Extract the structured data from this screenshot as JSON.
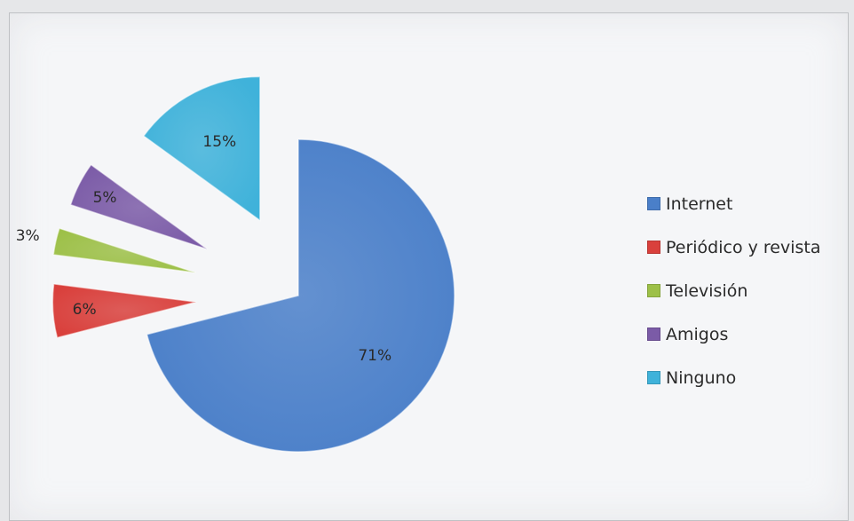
{
  "chart_data": {
    "type": "pie",
    "categories": [
      "Internet",
      "Periódico y revista",
      "Televisión",
      "Amigos",
      "Ninguno"
    ],
    "values": [
      71,
      6,
      3,
      5,
      15
    ],
    "labels": [
      "71%",
      "6%",
      "3%",
      "5%",
      "15%"
    ],
    "colors": [
      "#4a7fc9",
      "#d9403c",
      "#9dc048",
      "#7b5ba7",
      "#3fb2da"
    ],
    "legend_position": "right",
    "exploded": true
  }
}
